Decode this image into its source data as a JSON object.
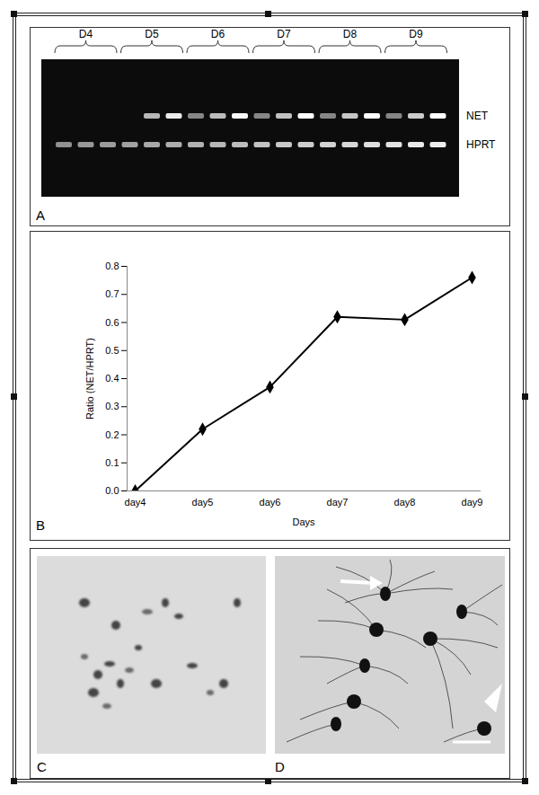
{
  "chart_data": {
    "type": "line",
    "categories": [
      "day4",
      "day5",
      "day6",
      "day7",
      "day8",
      "day9"
    ],
    "values": [
      0,
      0.22,
      0.37,
      0.62,
      0.61,
      0.76
    ],
    "color": "#000000",
    "marker": "diamond",
    "ylim": [
      0,
      0.8
    ],
    "yticks": [
      0,
      0.1,
      0.2,
      0.3,
      0.4,
      0.5,
      0.6,
      0.7,
      0.8
    ],
    "xlabel": "Days",
    "ylabel": "Ratio (NET/HPRT)",
    "grid": false
  },
  "panels": {
    "A": {
      "label": "A",
      "lane_groups": [
        "D4",
        "D5",
        "D6",
        "D7",
        "D8",
        "D9"
      ],
      "bands": [
        "NET",
        "HPRT"
      ]
    },
    "B": {
      "label": "B"
    },
    "C": {
      "label": "C"
    },
    "D": {
      "label": "D"
    }
  }
}
